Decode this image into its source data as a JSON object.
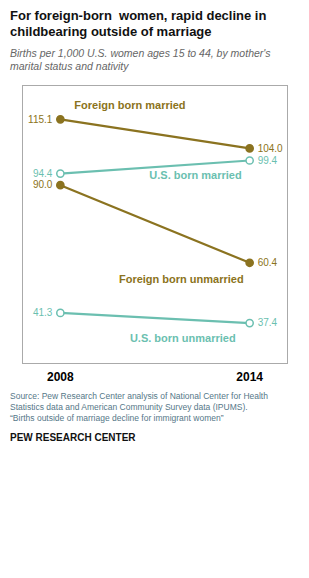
{
  "chart_data": {
    "type": "line",
    "title": "For foreign-born  women, rapid decline in\nchildbearing outside of marriage",
    "subtitle": "Births per 1,000 U.S. women ages 15 to 44, by mother's\nmarital status and nativity",
    "x": [
      2008,
      2014
    ],
    "xlim": [
      2006.8,
      2015.2
    ],
    "xticks": [
      2008,
      2014
    ],
    "ylim": [
      22,
      128
    ],
    "yticks": [],
    "series": [
      {
        "name": "Foreign born married",
        "color": "#8B7320",
        "marker": "filled",
        "values": [
          115.1,
          104.0
        ],
        "value_labels": [
          "115.1",
          "104.0"
        ]
      },
      {
        "name": "U.S. born married",
        "color": "#6BBFB0",
        "marker": "open",
        "values": [
          94.4,
          99.4
        ],
        "value_labels": [
          "94.4",
          "99.4"
        ]
      },
      {
        "name": "Foreign born unmarried",
        "color": "#8B7320",
        "marker": "filled",
        "values": [
          90.0,
          60.4
        ],
        "value_labels": [
          "90.0",
          "60.4"
        ]
      },
      {
        "name": "U.S. born unmarried",
        "color": "#6BBFB0",
        "marker": "open",
        "values": [
          41.3,
          37.4
        ],
        "value_labels": [
          "41.3",
          "37.4"
        ]
      }
    ],
    "data_labels": true,
    "tick_labels": "x",
    "grid": false,
    "source": "Source: Pew Research Center analysis of National Center for Health\nStatistics data and American Community Survey data (IPUMS).\n“Births outside of marriage decline for immigrant women”",
    "credit": "PEW RESEARCH CENTER"
  }
}
